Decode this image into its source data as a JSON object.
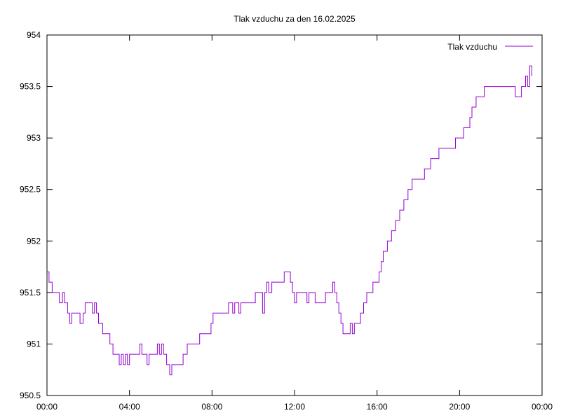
{
  "chart_data": {
    "type": "line",
    "title": "Tlak vzduchu za den 16.02.2025",
    "xlabel": "",
    "ylabel": "",
    "x_tick_labels": [
      "00:00",
      "04:00",
      "08:00",
      "12:00",
      "16:00",
      "20:00",
      "00:00"
    ],
    "y_tick_labels": [
      "950.5",
      "951",
      "951.5",
      "952",
      "952.5",
      "953",
      "953.5",
      "954"
    ],
    "ylim": [
      950.5,
      954
    ],
    "xlim_hours": [
      0,
      24
    ],
    "grid": false,
    "legend_position": "top-right",
    "series": [
      {
        "name": "Tlak vzduchu",
        "color": "#9400d3",
        "points": [
          [
            0.0,
            951.7
          ],
          [
            0.1,
            951.6
          ],
          [
            0.25,
            951.5
          ],
          [
            0.5,
            951.5
          ],
          [
            0.6,
            951.4
          ],
          [
            0.75,
            951.5
          ],
          [
            0.85,
            951.4
          ],
          [
            1.0,
            951.3
          ],
          [
            1.1,
            951.2
          ],
          [
            1.2,
            951.3
          ],
          [
            1.5,
            951.3
          ],
          [
            1.6,
            951.2
          ],
          [
            1.75,
            951.3
          ],
          [
            1.85,
            951.4
          ],
          [
            2.1,
            951.4
          ],
          [
            2.2,
            951.3
          ],
          [
            2.3,
            951.4
          ],
          [
            2.4,
            951.3
          ],
          [
            2.5,
            951.2
          ],
          [
            2.6,
            951.2
          ],
          [
            2.7,
            951.1
          ],
          [
            2.9,
            951.1
          ],
          [
            3.05,
            951.0
          ],
          [
            3.2,
            950.9
          ],
          [
            3.4,
            950.9
          ],
          [
            3.5,
            950.8
          ],
          [
            3.6,
            950.9
          ],
          [
            3.7,
            950.8
          ],
          [
            3.8,
            950.9
          ],
          [
            3.9,
            950.8
          ],
          [
            4.0,
            950.9
          ],
          [
            4.4,
            950.9
          ],
          [
            4.5,
            951.0
          ],
          [
            4.6,
            950.9
          ],
          [
            4.8,
            950.9
          ],
          [
            4.85,
            950.8
          ],
          [
            4.95,
            950.9
          ],
          [
            5.25,
            950.9
          ],
          [
            5.35,
            951.0
          ],
          [
            5.45,
            950.9
          ],
          [
            5.55,
            951.0
          ],
          [
            5.65,
            950.9
          ],
          [
            5.8,
            950.8
          ],
          [
            5.95,
            950.7
          ],
          [
            6.05,
            950.8
          ],
          [
            6.4,
            950.8
          ],
          [
            6.6,
            950.9
          ],
          [
            6.8,
            951.0
          ],
          [
            7.2,
            951.0
          ],
          [
            7.4,
            951.1
          ],
          [
            7.8,
            951.1
          ],
          [
            7.95,
            951.2
          ],
          [
            8.05,
            951.3
          ],
          [
            8.7,
            951.3
          ],
          [
            8.8,
            951.4
          ],
          [
            9.0,
            951.3
          ],
          [
            9.1,
            951.4
          ],
          [
            9.3,
            951.3
          ],
          [
            9.4,
            951.4
          ],
          [
            10.0,
            951.4
          ],
          [
            10.1,
            951.5
          ],
          [
            10.4,
            951.5
          ],
          [
            10.45,
            951.3
          ],
          [
            10.55,
            951.5
          ],
          [
            10.65,
            951.6
          ],
          [
            10.75,
            951.5
          ],
          [
            10.9,
            951.6
          ],
          [
            11.4,
            951.6
          ],
          [
            11.5,
            951.7
          ],
          [
            11.7,
            951.7
          ],
          [
            11.8,
            951.6
          ],
          [
            11.9,
            951.5
          ],
          [
            12.0,
            951.4
          ],
          [
            12.1,
            951.5
          ],
          [
            12.5,
            951.5
          ],
          [
            12.6,
            951.4
          ],
          [
            12.7,
            951.5
          ],
          [
            12.9,
            951.5
          ],
          [
            13.0,
            951.4
          ],
          [
            13.4,
            951.4
          ],
          [
            13.5,
            951.5
          ],
          [
            13.8,
            951.5
          ],
          [
            13.85,
            951.6
          ],
          [
            13.95,
            951.5
          ],
          [
            14.05,
            951.4
          ],
          [
            14.15,
            951.3
          ],
          [
            14.25,
            951.2
          ],
          [
            14.35,
            951.1
          ],
          [
            14.6,
            951.1
          ],
          [
            14.7,
            951.2
          ],
          [
            14.8,
            951.1
          ],
          [
            14.9,
            951.2
          ],
          [
            15.1,
            951.2
          ],
          [
            15.2,
            951.3
          ],
          [
            15.35,
            951.4
          ],
          [
            15.5,
            951.5
          ],
          [
            15.7,
            951.5
          ],
          [
            15.8,
            951.6
          ],
          [
            16.0,
            951.6
          ],
          [
            16.1,
            951.7
          ],
          [
            16.2,
            951.8
          ],
          [
            16.3,
            951.9
          ],
          [
            16.5,
            952.0
          ],
          [
            16.7,
            952.1
          ],
          [
            16.9,
            952.2
          ],
          [
            17.1,
            952.3
          ],
          [
            17.3,
            952.4
          ],
          [
            17.5,
            952.5
          ],
          [
            17.7,
            952.6
          ],
          [
            18.2,
            952.6
          ],
          [
            18.3,
            952.7
          ],
          [
            18.6,
            952.8
          ],
          [
            19.0,
            952.9
          ],
          [
            19.7,
            952.9
          ],
          [
            19.8,
            953.0
          ],
          [
            20.1,
            953.0
          ],
          [
            20.2,
            953.1
          ],
          [
            20.4,
            953.1
          ],
          [
            20.5,
            953.2
          ],
          [
            20.6,
            953.3
          ],
          [
            20.8,
            953.4
          ],
          [
            21.1,
            953.4
          ],
          [
            21.2,
            953.5
          ],
          [
            22.5,
            953.5
          ],
          [
            22.7,
            953.4
          ],
          [
            22.9,
            953.4
          ],
          [
            23.0,
            953.5
          ],
          [
            23.2,
            953.6
          ],
          [
            23.3,
            953.5
          ],
          [
            23.4,
            953.7
          ],
          [
            23.5,
            953.6
          ]
        ]
      }
    ]
  }
}
